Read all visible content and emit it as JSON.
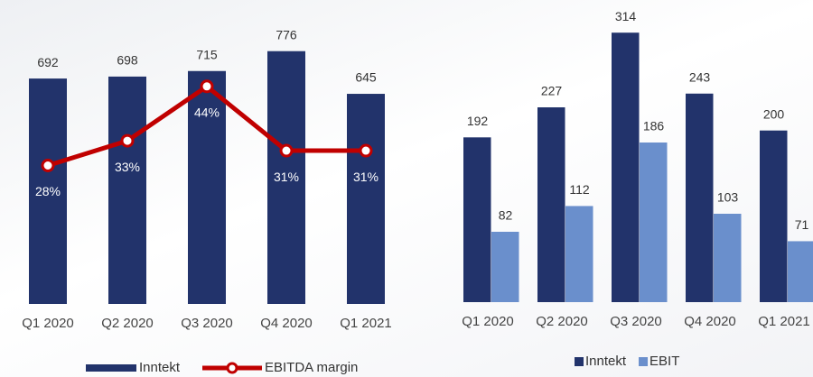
{
  "chart_data": [
    {
      "type": "combo",
      "categories": [
        "Q1 2020",
        "Q2 2020",
        "Q3 2020",
        "Q4 2020",
        "Q1 2021"
      ],
      "series": [
        {
          "name": "Inntekt",
          "type": "bar",
          "color": "#22336b",
          "values": [
            692,
            698,
            715,
            776,
            645
          ]
        },
        {
          "name": "EBITDA margin",
          "type": "line",
          "axis": "y2",
          "color": "#c00000",
          "values": [
            28,
            33,
            44,
            31,
            31
          ],
          "value_labels": [
            "28%",
            "33%",
            "44%",
            "31%",
            "31%"
          ]
        }
      ],
      "ylim": [
        0,
        850
      ],
      "y2lim": [
        0,
        56
      ],
      "grid": false,
      "legend": "bottom"
    },
    {
      "type": "bar",
      "categories": [
        "Q1 2020",
        "Q2 2020",
        "Q3 2020",
        "Q4 2020",
        "Q1 2021"
      ],
      "series": [
        {
          "name": "Inntekt",
          "color": "#22336b",
          "values": [
            192,
            227,
            314,
            243,
            200
          ]
        },
        {
          "name": "EBIT",
          "color": "#6a8fcc",
          "values": [
            82,
            112,
            186,
            103,
            71
          ]
        }
      ],
      "ylim": [
        0,
        330
      ],
      "grid": false,
      "legend": "bottom"
    }
  ]
}
